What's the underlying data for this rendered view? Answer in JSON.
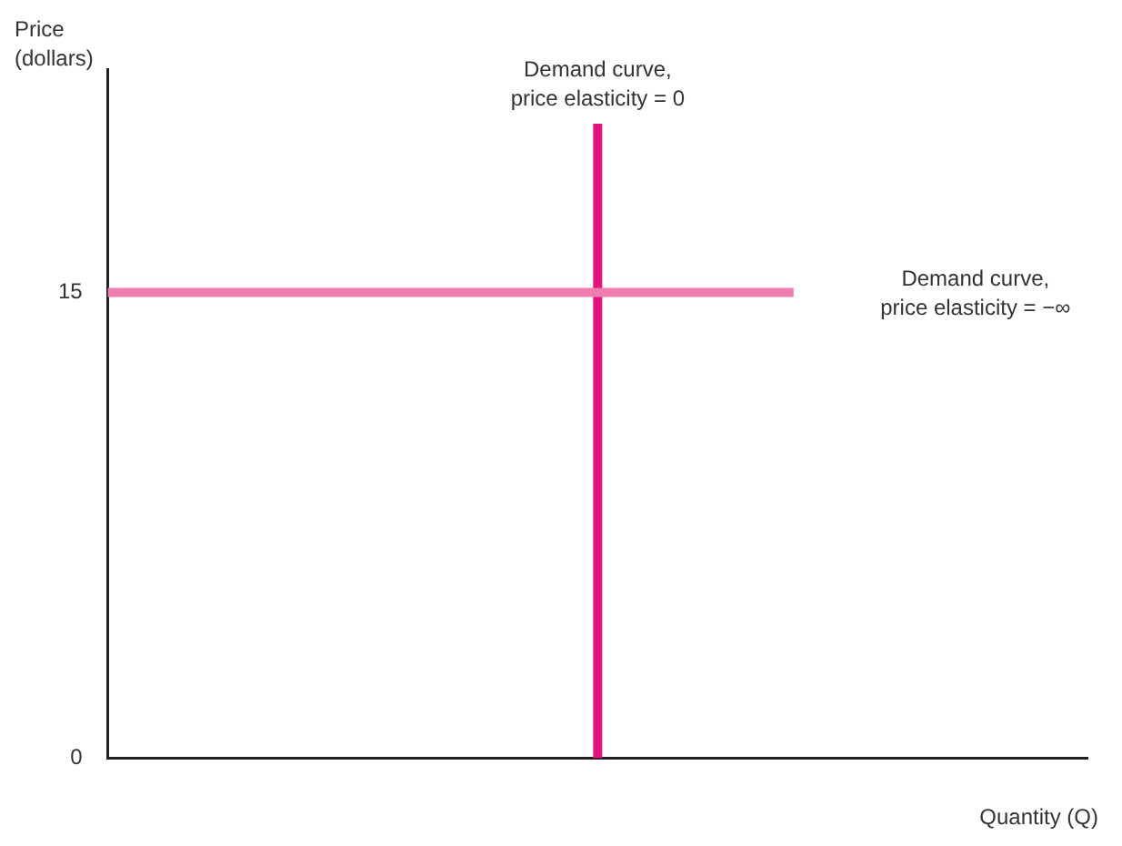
{
  "chart_data": {
    "type": "line",
    "ylabel": "Price\n(dollars)",
    "xlabel": "Quantity (Q)",
    "categories": [
      null,
      null,
      null,
      null,
      null,
      null,
      null,
      null,
      null,
      null,
      null,
      null,
      null,
      null,
      null,
      null,
      null,
      null,
      null,
      null,
      null
    ],
    "ylim": [
      0,
      22.2
    ],
    "yticks": [
      0,
      15
    ],
    "grid": false,
    "legend": false,
    "marker": "none",
    "line_style": "solid",
    "series": [
      {
        "color": "#f07db0",
        "values": [
          15,
          15,
          15,
          15,
          15,
          15,
          15,
          15,
          15,
          15,
          15,
          15,
          15,
          15,
          15,
          null,
          null,
          null,
          null,
          null,
          null
        ]
      }
    ],
    "annotations": [
      "Demand curve,\nprice elasticity = 0",
      "Demand curve,\nprice elasticity = −∞"
    ]
  }
}
